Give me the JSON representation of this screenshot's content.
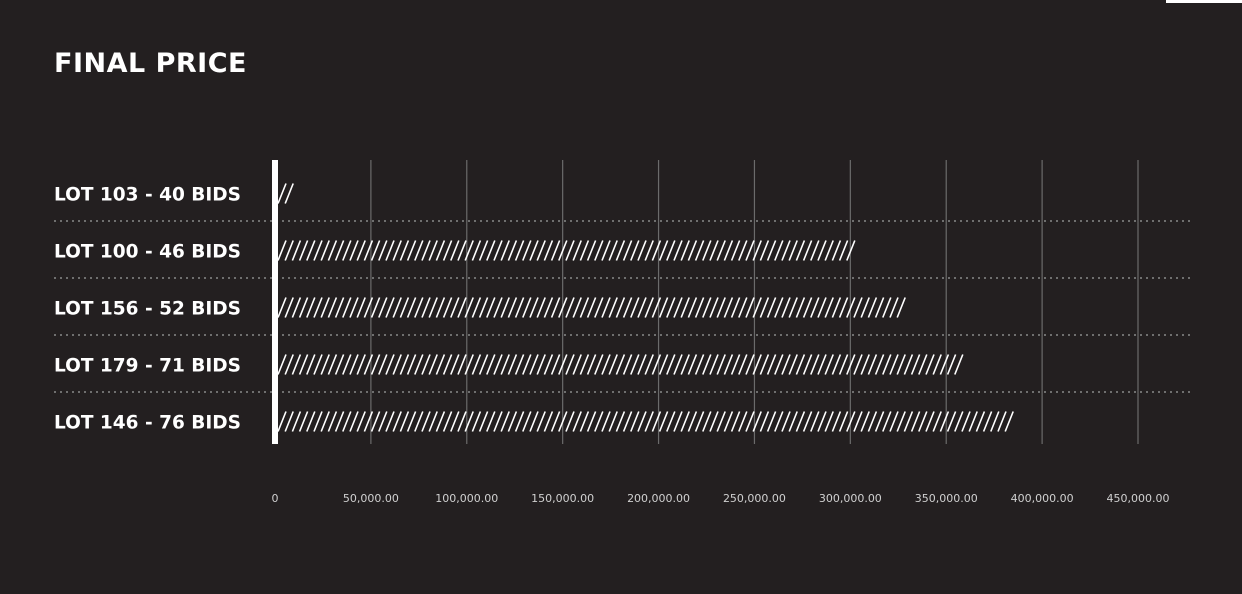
{
  "title": "FINAL PRICE",
  "colors": {
    "background": "#231f20",
    "text": "#ffffff",
    "gridline": "#6b6b6b",
    "separator": "#6f6f6f",
    "tick_label": "#d0d0d0"
  },
  "chart_data": {
    "type": "bar",
    "orientation": "horizontal",
    "title": "FINAL PRICE",
    "categories": [
      "LOT 103 - 40 BIDS",
      "LOT 100 - 46 BIDS",
      "LOT 156 - 52 BIDS",
      "LOT 179 - 71 BIDS",
      "LOT 146 - 76 BIDS"
    ],
    "values": [
      10000,
      302000,
      330000,
      358000,
      383000
    ],
    "bar_style": "slash-pattern",
    "xlim": [
      0,
      450000
    ],
    "x_ticks": [
      0,
      50000,
      100000,
      150000,
      200000,
      250000,
      300000,
      350000,
      400000,
      450000
    ],
    "x_tick_labels": [
      "0",
      "50,000.00",
      "100,000.00",
      "150,000.00",
      "200,000.00",
      "250,000.00",
      "300,000.00",
      "350,000.00",
      "400,000.00",
      "450,000.00"
    ],
    "grid": true,
    "legend": false
  }
}
